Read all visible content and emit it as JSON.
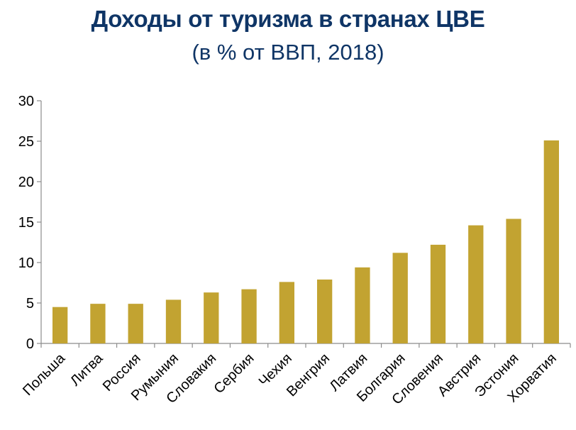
{
  "chart_data": {
    "type": "bar",
    "title": "Доходы от туризма в странах ЦВЕ",
    "subtitle": "(в % от ВВП, 2018)",
    "xlabel": "",
    "ylabel": "",
    "ylim": [
      0,
      30
    ],
    "yticks": [
      0,
      5,
      10,
      15,
      20,
      25,
      30
    ],
    "ytick_labels": [
      "0",
      "5",
      "10",
      "15",
      "20",
      "25",
      "30"
    ],
    "grid": false,
    "legend": "none",
    "categories": [
      "Польша",
      "Литва",
      "Россия",
      "Румыния",
      "Словакия",
      "Сербия",
      "Чехия",
      "Венгрия",
      "Латвия",
      "Болгария",
      "Словения",
      "Австрия",
      "Эстония",
      "Хорватия"
    ],
    "values": [
      4.5,
      4.9,
      4.9,
      5.4,
      6.3,
      6.7,
      7.6,
      7.9,
      9.4,
      11.2,
      12.2,
      14.6,
      15.4,
      25.1
    ],
    "bar_color": "#c2a331",
    "title_color": "#0f3566"
  }
}
